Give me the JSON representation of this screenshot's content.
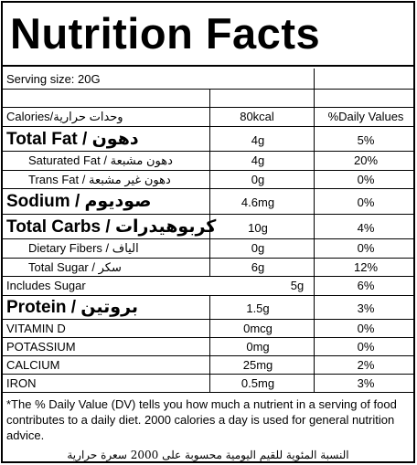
{
  "title": "Nutrition Facts",
  "serving_size": "Serving size: 20G",
  "header": {
    "label": "Calories/وحدات حرارية",
    "amount": "80kcal",
    "dv": "%Daily Values"
  },
  "rows": [
    {
      "label": "Total Fat / دهون",
      "amount": "4g",
      "dv": "5%"
    },
    {
      "label": "Saturated Fat / دهون مشبعة",
      "amount": "4g",
      "dv": "20%"
    },
    {
      "label": "Trans Fat / دهون غير مشبعة",
      "amount": "0g",
      "dv": "0%"
    },
    {
      "label": "Sodium / صوديوم",
      "amount": "4.6mg",
      "dv": "0%"
    },
    {
      "label": "Total Carbs / كربوهيدرات",
      "amount": "10g",
      "dv": "4%"
    },
    {
      "label": "Dietary Fibers / الياف",
      "amount": "0g",
      "dv": "0%"
    },
    {
      "label": "Total Sugar / سكر",
      "amount": "6g",
      "dv": "12%"
    },
    {
      "label": "Includes Sugar",
      "amount": "5g",
      "dv": "6%"
    },
    {
      "label": "Protein / بروتين",
      "amount": "1.5g",
      "dv": "3%"
    },
    {
      "label": "VITAMIN D",
      "amount": "0mcg",
      "dv": "0%"
    },
    {
      "label": "POTASSIUM",
      "amount": "0mg",
      "dv": "0%"
    },
    {
      "label": "CALCIUM",
      "amount": "25mg",
      "dv": "2%"
    },
    {
      "label": "IRON",
      "amount": "0.5mg",
      "dv": "3%"
    }
  ],
  "footnote": "*The % Daily Value (DV) tells you how much a nutrient in a serving of food contributes to a daily diet. 2000 calories a day is used for general nutrition advice.",
  "arabic_note": "النسبة المئوية للقيم اليومية محسوبة على 2000 سعرة حرارية"
}
